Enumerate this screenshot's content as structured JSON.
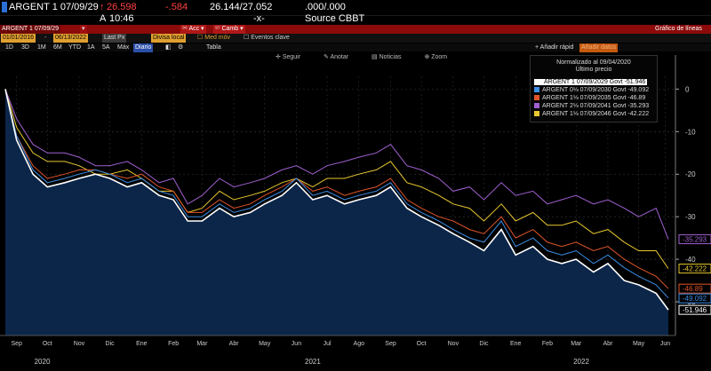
{
  "header": {
    "ticker": "ARGENT 1 07/09/29",
    "price": "26.598",
    "change": "-.584",
    "bid_ask": "26.144/27.052",
    "zero": ".000/.000",
    "time_prefix": "A",
    "time": "10:46",
    "x_mark": "-x-",
    "source": "Source CBBT"
  },
  "toolbar": {
    "security": "ARGENT 1 07/09/29",
    "actions": "Acc",
    "change_menu": "Camb",
    "chart_title": "Gráfico de líneas",
    "start_date": "01/01/2016",
    "end_date": "06/13/2022",
    "field": "Last Px",
    "currency": "Divisa local",
    "moving_avg": "Med móv",
    "key_events": "Eventos clave",
    "add_quick": "Añadir rápid",
    "add_data": "Añadir datos"
  },
  "ranges": [
    "1D",
    "3D",
    "1M",
    "6M",
    "YTD",
    "1A",
    "5A",
    "Máx",
    "Diario",
    "",
    "",
    "Tabla"
  ],
  "plot_tools": [
    "Seguir",
    "Anotar",
    "Noticias",
    "Zoom"
  ],
  "legend": {
    "heading": "Normalizado al 09/04/2020",
    "subheading": "Último precio"
  },
  "chart_data": {
    "type": "line",
    "title": "",
    "xlabel": "",
    "ylabel": "",
    "ylim": [
      -55,
      3
    ],
    "y_ticks": [
      0,
      -10,
      -20,
      -30,
      -40,
      -50
    ],
    "x_ticks": [
      "Sep",
      "Oct",
      "Nov",
      "Dic",
      "Ene",
      "Feb",
      "Mar",
      "Abr",
      "May",
      "Jun",
      "Jul",
      "Ago",
      "Sep",
      "Oct",
      "Nov",
      "Dic",
      "Ene",
      "Feb",
      "Mar",
      "Abr",
      "May",
      "Jun"
    ],
    "x_years": [
      "2020",
      "2021",
      "2022"
    ],
    "x_dates": [
      "2020-09-04",
      "2020-09-15",
      "2020-10-01",
      "2020-10-15",
      "2020-11-01",
      "2020-11-15",
      "2020-12-01",
      "2020-12-15",
      "2021-01-01",
      "2021-01-15",
      "2021-02-01",
      "2021-02-15",
      "2021-03-01",
      "2021-03-15",
      "2021-04-01",
      "2021-04-15",
      "2021-05-01",
      "2021-05-15",
      "2021-06-01",
      "2021-06-15",
      "2021-07-01",
      "2021-07-15",
      "2021-08-01",
      "2021-08-15",
      "2021-09-01",
      "2021-09-15",
      "2021-10-01",
      "2021-10-15",
      "2021-11-01",
      "2021-11-15",
      "2021-12-01",
      "2021-12-15",
      "2022-01-01",
      "2022-01-15",
      "2022-02-01",
      "2022-02-15",
      "2022-03-01",
      "2022-03-15",
      "2022-04-01",
      "2022-04-15",
      "2022-05-01",
      "2022-05-15",
      "2022-06-01",
      "2022-06-13"
    ],
    "series": [
      {
        "name": "ARGENT 1 07/09/2029 Govt",
        "last": "-51.946",
        "color": "#ffffff",
        "values": [
          0,
          -12,
          -20,
          -23,
          -22,
          -21,
          -20,
          -21,
          -23,
          -22,
          -25,
          -26,
          -31,
          -31,
          -28,
          -30,
          -29,
          -27,
          -25,
          -22,
          -26,
          -25,
          -27,
          -26,
          -25,
          -23,
          -28,
          -30,
          -32,
          -34,
          -36,
          -38,
          -33,
          -39,
          -37,
          -40,
          -41,
          -40,
          -43,
          -41,
          -45,
          -46,
          -48,
          -51.9
        ]
      },
      {
        "name": "ARGENT 0⅛ 07/09/2030 Govt",
        "last": "-49.092",
        "color": "#3a8ee6",
        "values": [
          0,
          -11,
          -19,
          -22,
          -21,
          -20,
          -19,
          -20,
          -22,
          -21,
          -24,
          -25,
          -30,
          -30,
          -27,
          -29,
          -28,
          -26,
          -24,
          -21,
          -25,
          -24,
          -26,
          -25,
          -24,
          -22,
          -27,
          -29,
          -31,
          -33,
          -35,
          -36,
          -31,
          -37,
          -35,
          -38,
          -39,
          -38,
          -41,
          -39,
          -42,
          -44,
          -46,
          -49.1
        ]
      },
      {
        "name": "ARGENT 1⅛ 07/09/2035 Govt",
        "last": "-46.89",
        "color": "#e0552a",
        "values": [
          0,
          -11,
          -18,
          -21,
          -20,
          -19,
          -19,
          -20,
          -21,
          -20,
          -23,
          -24,
          -29,
          -29,
          -26,
          -28,
          -27,
          -25,
          -23,
          -21,
          -24,
          -23,
          -25,
          -24,
          -23,
          -21,
          -26,
          -28,
          -30,
          -31,
          -33,
          -34,
          -30,
          -35,
          -33,
          -36,
          -37,
          -36,
          -38,
          -37,
          -40,
          -42,
          -44,
          -46.9
        ]
      },
      {
        "name": "ARGENT 2⅛ 07/09/2041 Govt",
        "last": "-35.293",
        "color": "#a060d0",
        "values": [
          0,
          -7,
          -13,
          -15,
          -15,
          -16,
          -18,
          -18,
          -17,
          -19,
          -22,
          -21,
          -27,
          -25,
          -21,
          -23,
          -22,
          -21,
          -19,
          -18,
          -20,
          -18,
          -17,
          -16,
          -15,
          -13,
          -18,
          -19,
          -21,
          -24,
          -23,
          -26,
          -22,
          -25,
          -24,
          -27,
          -26,
          -25,
          -27,
          -26,
          -28,
          -30,
          -28,
          -35.3
        ]
      },
      {
        "name": "ARGENT 1⅛ 07/09/2046 Govt",
        "last": "-42.222",
        "color": "#e8c830",
        "values": [
          0,
          -9,
          -15,
          -17,
          -17,
          -18,
          -20,
          -20,
          -19,
          -21,
          -24,
          -24,
          -29,
          -28,
          -24,
          -26,
          -25,
          -24,
          -22,
          -21,
          -23,
          -21,
          -21,
          -20,
          -19,
          -17,
          -22,
          -23,
          -25,
          -27,
          -28,
          -31,
          -27,
          -31,
          -29,
          -32,
          -32,
          -31,
          -34,
          -33,
          -36,
          -38,
          -38,
          -42.2
        ]
      }
    ]
  }
}
